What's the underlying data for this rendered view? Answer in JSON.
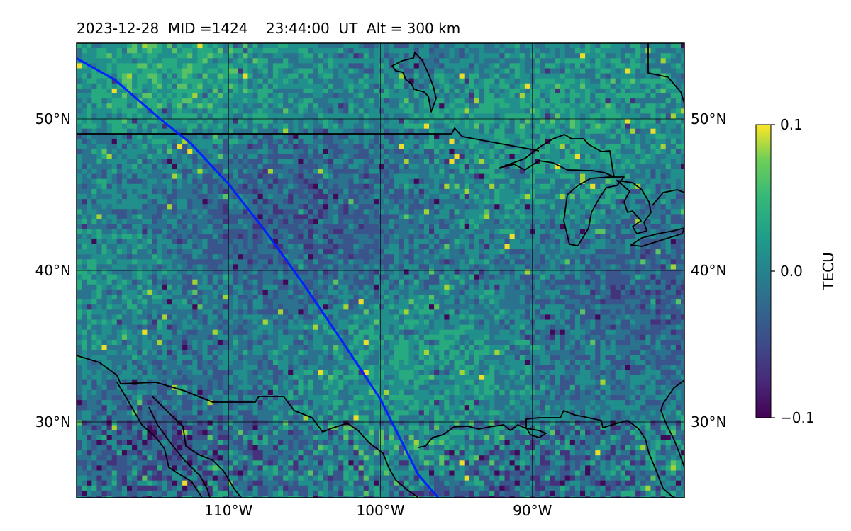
{
  "header": {
    "title": "2023-12-28  MID =1424    23:44:00  UT  Alt = 300 km"
  },
  "map": {
    "lon_range": [
      -120,
      -80
    ],
    "lat_range": [
      25,
      55
    ],
    "lat_ticks": [
      {
        "value": 50,
        "label": "50°N"
      },
      {
        "value": 40,
        "label": "40°N"
      },
      {
        "value": 30,
        "label": "30°N"
      }
    ],
    "lon_ticks": [
      {
        "value": -110,
        "label": "110°W"
      },
      {
        "value": -100,
        "label": "100°W"
      },
      {
        "value": -90,
        "label": "90°W"
      }
    ],
    "track_color": "#0022ff",
    "track_lonlat": [
      [
        -120,
        54
      ],
      [
        -117.5,
        52.6
      ],
      [
        -114.5,
        50
      ],
      [
        -112.5,
        48.4
      ],
      [
        -110,
        45.7
      ],
      [
        -107.5,
        42.5
      ],
      [
        -105,
        39
      ],
      [
        -102.5,
        35.3
      ],
      [
        -100,
        31.5
      ],
      [
        -98.5,
        28.5
      ],
      [
        -97.5,
        26.5
      ],
      [
        -96.2,
        25
      ]
    ]
  },
  "colorbar": {
    "label": "TECU",
    "min": -0.1,
    "max": 0.1,
    "colormap": "viridis",
    "ticks": [
      {
        "value": 0.1,
        "label": "0.1"
      },
      {
        "value": 0.0,
        "label": "0.0"
      },
      {
        "value": -0.1,
        "label": "−0.1"
      }
    ]
  }
}
